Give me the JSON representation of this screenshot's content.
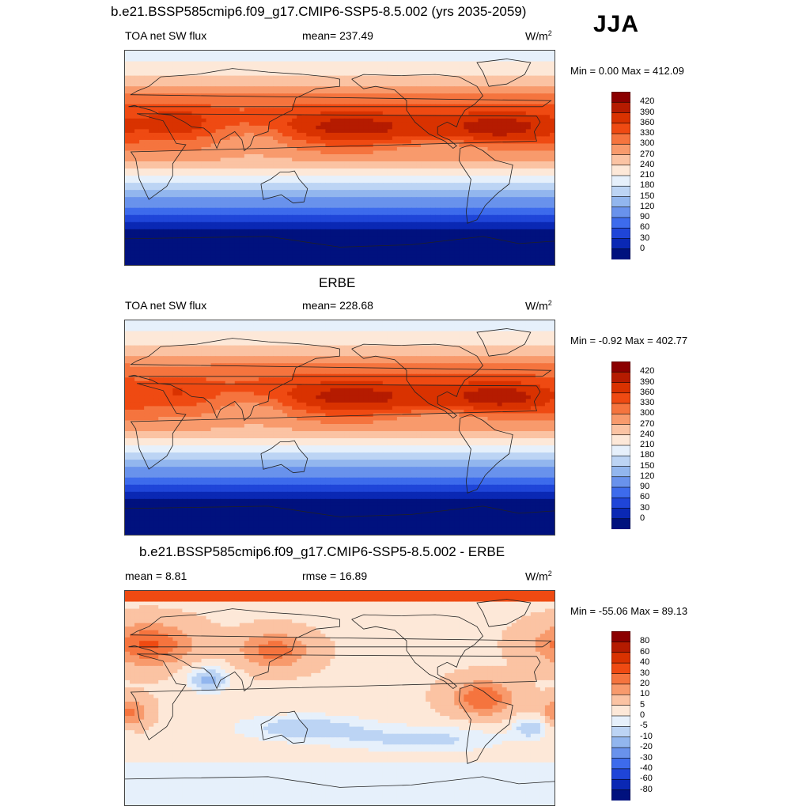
{
  "season": "JJA",
  "units": {
    "prefix": "W/m",
    "exp": "2"
  },
  "chart_data": [
    {
      "type": "heatmap",
      "title": "b.e21.BSSP585cmip6.f09_g17.CMIP6-SSP5-8.5.002 (yrs 2035-2059)",
      "variable": "TOA net SW flux",
      "stat_text": "mean= 237.49",
      "minmax_text": "Min =   0.00 Max = 412.09",
      "min": 0.0,
      "max": 412.09,
      "mean": 237.49,
      "colorbar": {
        "labels": [
          "420",
          "390",
          "360",
          "330",
          "300",
          "270",
          "240",
          "210",
          "180",
          "150",
          "120",
          "90",
          "60",
          "30",
          "0"
        ],
        "colors": [
          "#8b0000",
          "#b51b00",
          "#d93200",
          "#ef4a12",
          "#f5743e",
          "#f89a6c",
          "#fbc3a3",
          "#fde8d8",
          "#e6f0fb",
          "#bcd4f4",
          "#92b6ee",
          "#6992ec",
          "#3d6bec",
          "#1f45d8",
          "#0a28b4",
          "#00117e"
        ]
      }
    },
    {
      "type": "heatmap",
      "title": "ERBE",
      "variable": "TOA net SW flux",
      "stat_text": "mean= 228.68",
      "minmax_text": "Min =  -0.92 Max = 402.77",
      "min": -0.92,
      "max": 402.77,
      "mean": 228.68,
      "colorbar": {
        "labels": [
          "420",
          "390",
          "360",
          "330",
          "300",
          "270",
          "240",
          "210",
          "180",
          "150",
          "120",
          "90",
          "60",
          "30",
          "0"
        ],
        "colors": [
          "#8b0000",
          "#b51b00",
          "#d93200",
          "#ef4a12",
          "#f5743e",
          "#f89a6c",
          "#fbc3a3",
          "#fde8d8",
          "#e6f0fb",
          "#bcd4f4",
          "#92b6ee",
          "#6992ec",
          "#3d6bec",
          "#1f45d8",
          "#0a28b4",
          "#00117e"
        ]
      }
    },
    {
      "type": "heatmap",
      "title": "b.e21.BSSP585cmip6.f09_g17.CMIP6-SSP5-8.5.002 - ERBE",
      "stat_text": "mean =   8.81",
      "rmse_text": "rmse =  16.89",
      "minmax_text": "Min = -55.06 Max =  89.13",
      "min": -55.06,
      "max": 89.13,
      "mean": 8.81,
      "rmse": 16.89,
      "colorbar": {
        "labels": [
          "80",
          "60",
          "40",
          "30",
          "20",
          "10",
          "5",
          "0",
          "-5",
          "-10",
          "-20",
          "-30",
          "-40",
          "-60",
          "-80"
        ],
        "colors": [
          "#8b0000",
          "#b51b00",
          "#d93200",
          "#ef4a12",
          "#f5743e",
          "#f89a6c",
          "#fbc3a3",
          "#fde8d8",
          "#e6f0fb",
          "#bcd4f4",
          "#92b6ee",
          "#6992ec",
          "#3d6bec",
          "#1f45d8",
          "#0a28b4",
          "#00117e"
        ]
      }
    }
  ]
}
